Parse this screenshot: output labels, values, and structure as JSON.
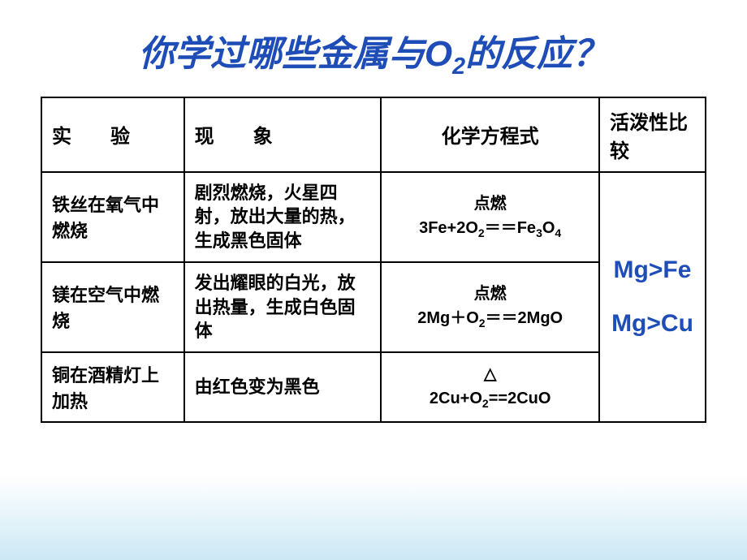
{
  "title_parts": {
    "pre": "你学过哪些金属与O",
    "sub": "2",
    "post": "的反应？"
  },
  "headers": {
    "exp": "实　　验",
    "phen": "现　　象",
    "eq": "化学方程式",
    "act": "活泼性比较"
  },
  "rows": [
    {
      "exp": "铁丝在氧气中燃烧",
      "phen": "剧烈燃烧，火星四射，放出大量的热，生成黑色固体",
      "cond": "点燃",
      "eq_html": "3Fe+2O<span class=\"subnum\">2</span>＝＝Fe<span class=\"subnum\">3</span>O<span class=\"subnum\">4</span>"
    },
    {
      "exp": "镁在空气中燃烧",
      "phen": "发出耀眼的白光，放出热量，生成白色固体",
      "cond": "点燃",
      "eq_html": "2Mg＋O<span class=\"subnum\">2</span>＝＝2MgO"
    },
    {
      "exp": "铜在酒精灯上加热",
      "phen": "由红色变为黑色",
      "cond": "△",
      "eq_html": "2Cu+O<span class=\"subnum\">2</span>==2CuO"
    }
  ],
  "activity": {
    "line1": "Mg>Fe",
    "line2": "Mg>Cu"
  }
}
